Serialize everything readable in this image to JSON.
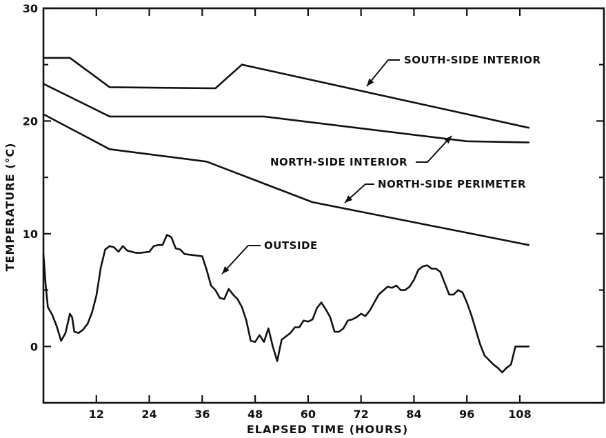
{
  "chart_data": {
    "type": "line",
    "xlabel": "ELAPSED TIME (HOURS)",
    "ylabel": "TEMPERATURE (°C)",
    "xlim": [
      0,
      120
    ],
    "ylim": [
      -5,
      30
    ],
    "xticks": [
      12,
      24,
      36,
      48,
      60,
      72,
      84,
      96,
      108
    ],
    "yticks": [
      0,
      10,
      20,
      30
    ],
    "ytick_labels": [
      "0",
      "10",
      "20",
      "30"
    ],
    "grid": false,
    "series": [
      {
        "name": "SOUTH-SIDE INTERIOR",
        "x": [
          0,
          6,
          15,
          39,
          45,
          110
        ],
        "y": [
          25.6,
          25.6,
          23.0,
          22.9,
          25.0,
          19.4
        ]
      },
      {
        "name": "NORTH-SIDE INTERIOR",
        "x": [
          0,
          15,
          50,
          96,
          110
        ],
        "y": [
          23.3,
          20.4,
          20.4,
          18.2,
          18.1
        ]
      },
      {
        "name": "NORTH-SIDE PERIMETER",
        "x": [
          0,
          15,
          37,
          61,
          110
        ],
        "y": [
          20.6,
          17.5,
          16.4,
          12.8,
          9.0
        ]
      },
      {
        "name": "OUTSIDE",
        "x": [
          0,
          0.5,
          1,
          2,
          3,
          4,
          5,
          6,
          6.5,
          7,
          8,
          9,
          10,
          11,
          12,
          13,
          14,
          15,
          16,
          17,
          18,
          19,
          20,
          21,
          22,
          24,
          25,
          26,
          27,
          28,
          29,
          30,
          31,
          32,
          34,
          36,
          37,
          38,
          39,
          40,
          41,
          42,
          43,
          44,
          45,
          46,
          47,
          48,
          49,
          50,
          51,
          52,
          53,
          54,
          55,
          56,
          57,
          58,
          59,
          60,
          61,
          62,
          63,
          64,
          65,
          66,
          67,
          68,
          69,
          70,
          71,
          72,
          73,
          74,
          76,
          78,
          79,
          80,
          81,
          82,
          83,
          84,
          85,
          86,
          87,
          88,
          89,
          90,
          91,
          92,
          93,
          94,
          95,
          96,
          97,
          98,
          99,
          100,
          101,
          102,
          103,
          104,
          105,
          106,
          107,
          108,
          109,
          110
        ],
        "y": [
          8.2,
          5.5,
          3.5,
          2.8,
          1.8,
          0.5,
          1.2,
          2.9,
          2.6,
          1.3,
          1.2,
          1.5,
          2.0,
          3.0,
          4.5,
          7.0,
          8.6,
          8.9,
          8.8,
          8.4,
          8.9,
          8.5,
          8.4,
          8.3,
          8.3,
          8.4,
          8.9,
          9.0,
          9.0,
          9.9,
          9.7,
          8.7,
          8.6,
          8.2,
          8.1,
          8.0,
          6.8,
          5.4,
          5.0,
          4.3,
          4.2,
          5.1,
          4.6,
          4.2,
          3.5,
          2.3,
          0.5,
          0.4,
          1.0,
          0.4,
          1.6,
          0.0,
          -1.3,
          0.6,
          0.9,
          1.2,
          1.7,
          1.7,
          2.3,
          2.2,
          2.4,
          3.4,
          3.9,
          3.3,
          2.6,
          1.3,
          1.3,
          1.6,
          2.3,
          2.4,
          2.6,
          2.9,
          2.7,
          3.2,
          4.6,
          5.3,
          5.2,
          5.4,
          5.0,
          5.0,
          5.3,
          5.9,
          6.8,
          7.1,
          7.2,
          6.9,
          6.9,
          6.6,
          5.6,
          4.6,
          4.6,
          5.0,
          4.8,
          3.9,
          2.8,
          1.5,
          0.2,
          -0.8,
          -1.2,
          -1.6,
          -1.9,
          -2.3,
          -1.9,
          -1.6,
          0.0,
          0.0,
          0.0,
          0.0
        ]
      }
    ],
    "annotations": [
      {
        "text": "SOUTH-SIDE INTERIOR",
        "series": 0
      },
      {
        "text": "NORTH-SIDE INTERIOR",
        "series": 1
      },
      {
        "text": "NORTH-SIDE PERIMETER",
        "series": 2
      },
      {
        "text": "OUTSIDE",
        "series": 3
      }
    ]
  }
}
